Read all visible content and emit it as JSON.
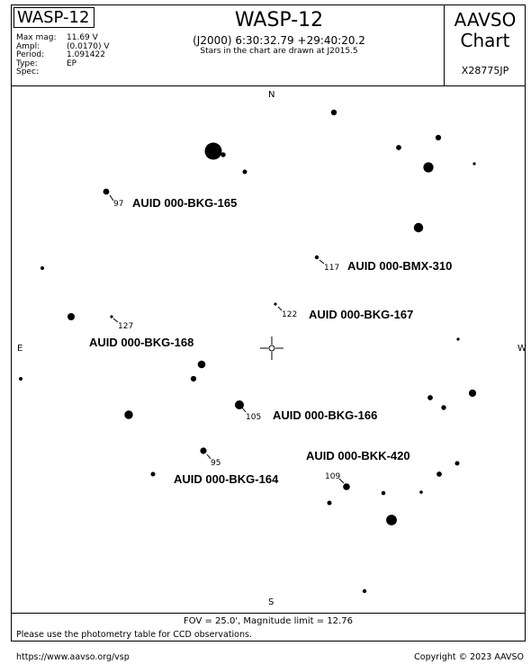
{
  "header": {
    "star_name": "WASP-12",
    "title": "WASP-12",
    "coords": "(J2000) 6:30:32.79 +29:40:20.2",
    "drawn_note": "Stars in the chart are drawn at J2015.5",
    "org_line1": "AAVSO",
    "org_line2": "Chart",
    "chart_id": "X28775JP",
    "info": [
      {
        "key": "Max mag:",
        "value": "11.69 V"
      },
      {
        "key": "Ampl:",
        "value": "(0.0170) V"
      },
      {
        "key": "Period:",
        "value": "1.091422"
      },
      {
        "key": "Type:",
        "value": "EP"
      },
      {
        "key": "Spec:",
        "value": ""
      }
    ]
  },
  "directions": {
    "north": "N",
    "south": "S",
    "east": "E",
    "west": "W"
  },
  "stars": [
    {
      "mag": 7.5
    },
    {
      "mag": 11.0
    },
    {
      "mag": 11.3
    },
    {
      "mag": 11.4
    },
    {
      "mag": 11.2
    },
    {
      "mag": 11.1
    },
    {
      "mag": 9.7
    },
    {
      "mag": 12.0
    },
    {
      "mag": 10.9
    },
    {
      "mag": 9.9
    },
    {
      "mag": 11.7
    },
    {
      "mag": 11.6
    },
    {
      "mag": 10.6
    },
    {
      "mag": 12.4
    },
    {
      "mag": 12.0
    },
    {
      "mag": 11.9
    },
    {
      "mag": 10.4
    },
    {
      "mag": 11.1
    },
    {
      "mag": 11.7
    },
    {
      "mag": 10.5
    },
    {
      "mag": 11.2
    },
    {
      "mag": 11.3
    },
    {
      "mag": 10.2
    },
    {
      "mag": 10.0
    },
    {
      "mag": 11.4
    },
    {
      "mag": 11.2
    },
    {
      "mag": 10.8
    },
    {
      "mag": 11.4
    },
    {
      "mag": 11.8
    },
    {
      "mag": 11.4
    },
    {
      "mag": 10.7
    },
    {
      "mag": 11.5
    },
    {
      "mag": 9.5
    },
    {
      "mag": 11.6
    }
  ],
  "comparisons": [
    {
      "num": "97",
      "auid": "AUID 000-BKG-165"
    },
    {
      "num": "117",
      "auid": "AUID 000-BMX-310"
    },
    {
      "num": "122",
      "auid": "AUID 000-BKG-167"
    },
    {
      "num": "127",
      "auid": "AUID 000-BKG-168"
    },
    {
      "num": "105",
      "auid": "AUID 000-BKG-166"
    },
    {
      "num": "95",
      "auid": "AUID 000-BKG-164"
    },
    {
      "num": "109",
      "auid": "AUID 000-BKK-420"
    }
  ],
  "footer": {
    "fov": "FOV = 25.0', Magnitude limit = 12.76",
    "photometry_note": "Please use the photometry table for CCD observations.",
    "url": "https://www.aavso.org/vsp",
    "copyright": "Copyright © 2023 AAVSO"
  }
}
